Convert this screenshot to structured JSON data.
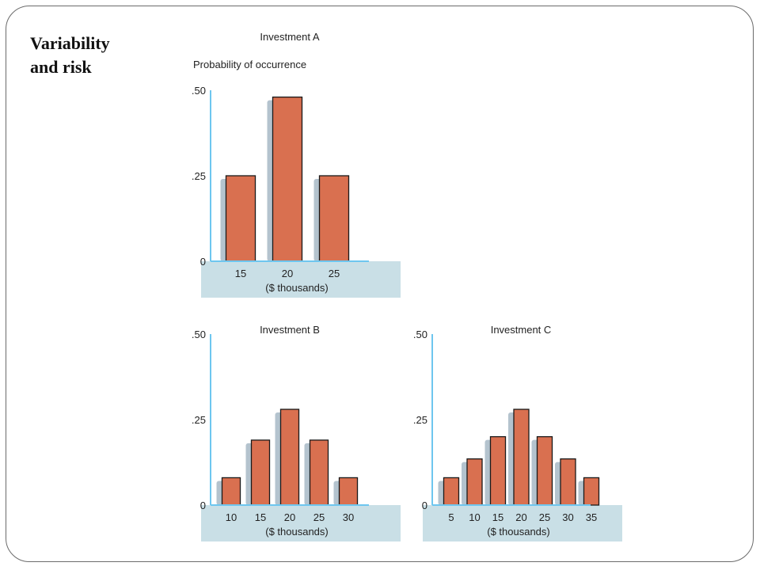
{
  "slide": {
    "title": "Variability\nand risk"
  },
  "colors": {
    "bar": "#d97050",
    "bar_shadow": "#b4c3ce",
    "axis": "#6ec6ef",
    "band": "#c9dfe6",
    "bar_stroke": "#1a1a1a"
  },
  "chart_data": [
    {
      "type": "bar",
      "title": "Investment A",
      "ylabel": "Probability of occurrence",
      "xlabel": "($ thousands)",
      "categories": [
        "15",
        "20",
        "25"
      ],
      "values": [
        0.25,
        0.48,
        0.25
      ],
      "ylim": [
        0,
        0.5
      ],
      "yticks": [
        0,
        0.25,
        0.5
      ],
      "ytick_labels": [
        "0",
        ".25",
        ".50"
      ]
    },
    {
      "type": "bar",
      "title": "Investment B",
      "ylabel": "",
      "xlabel": "($ thousands)",
      "categories": [
        "10",
        "15",
        "20",
        "25",
        "30"
      ],
      "values": [
        0.08,
        0.19,
        0.28,
        0.19,
        0.08
      ],
      "ylim": [
        0,
        0.5
      ],
      "yticks": [
        0,
        0.25,
        0.5
      ],
      "ytick_labels": [
        "0",
        ".25",
        ".50"
      ]
    },
    {
      "type": "bar",
      "title": "Investment C",
      "ylabel": "",
      "xlabel": "($ thousands)",
      "categories": [
        "5",
        "10",
        "15",
        "20",
        "25",
        "30",
        "35"
      ],
      "values": [
        0.08,
        0.135,
        0.2,
        0.28,
        0.2,
        0.135,
        0.08
      ],
      "ylim": [
        0,
        0.5
      ],
      "yticks": [
        0,
        0.25,
        0.5
      ],
      "ytick_labels": [
        "0",
        ".25",
        ".50"
      ]
    }
  ]
}
